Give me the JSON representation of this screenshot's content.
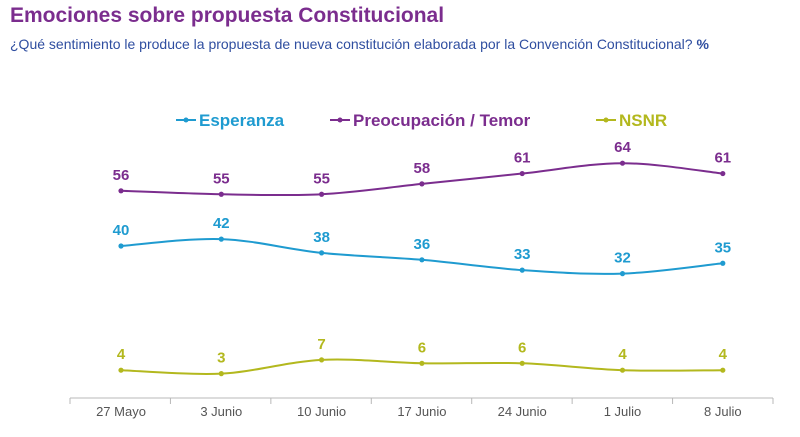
{
  "header": {
    "title": "Emociones sobre propuesta Constitucional",
    "subtitle": "¿Qué sentimiento le produce la propuesta de nueva constitución elaborada por la Convención Constitucional?",
    "unit": "%"
  },
  "chart_data": {
    "type": "line",
    "categories": [
      "27 Mayo",
      "3 Junio",
      "10 Junio",
      "17 Junio",
      "24 Junio",
      "1 Julio",
      "8 Julio"
    ],
    "series": [
      {
        "name": "Esperanza",
        "color": "#1f9bd0",
        "values": [
          40,
          42,
          38,
          36,
          33,
          32,
          35
        ]
      },
      {
        "name": "Preocupación / Temor",
        "color": "#7b2d8e",
        "values": [
          56,
          55,
          55,
          58,
          61,
          64,
          61
        ]
      },
      {
        "name": "NSNR",
        "color": "#b3b81e",
        "values": [
          4,
          3,
          7,
          6,
          6,
          4,
          4
        ]
      }
    ],
    "legend_position": "top",
    "grid": false,
    "data_labels": true,
    "line_style": "smooth"
  }
}
